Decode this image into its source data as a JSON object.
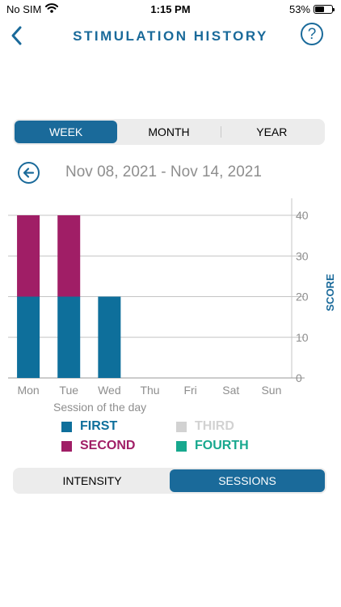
{
  "status": {
    "carrier": "No SIM",
    "time": "1:15 PM",
    "battery": "53%",
    "battery_level": 0.53
  },
  "nav": {
    "title": "STIMULATION HISTORY",
    "back_icon": "chevron-left-icon",
    "help_label": "?"
  },
  "period_tabs": [
    {
      "label": "WEEK",
      "active": true
    },
    {
      "label": "MONTH",
      "active": false
    },
    {
      "label": "YEAR",
      "active": false
    }
  ],
  "date_range": {
    "label": "Nov 08, 2021 - Nov 14, 2021",
    "back_icon": "arrow-left-circle-icon"
  },
  "colors": {
    "accent": "#1a6a9a",
    "first": "#0e6f9b",
    "second": "#a01e66",
    "third": "#d2d2d2",
    "fourth": "#17a88e",
    "axis_text": "#8e8e8e",
    "grid": "#c4c4c4"
  },
  "legend": {
    "items": [
      {
        "label": "FIRST",
        "color": "#0e6f9b"
      },
      {
        "label": "SECOND",
        "color": "#a01e66"
      },
      {
        "label": "THIRD",
        "color": "#d2d2d2"
      },
      {
        "label": "FOURTH",
        "color": "#17a88e"
      }
    ]
  },
  "mode_tabs": [
    {
      "label": "INTENSITY",
      "active": false
    },
    {
      "label": "SESSIONS",
      "active": true
    }
  ],
  "chart_data": {
    "type": "bar",
    "stacked": true,
    "categories": [
      "Mon",
      "Tue",
      "Wed",
      "Thu",
      "Fri",
      "Sat",
      "Sun"
    ],
    "series": [
      {
        "name": "FIRST",
        "values": [
          20,
          20,
          20,
          0,
          0,
          0,
          0
        ]
      },
      {
        "name": "SECOND",
        "values": [
          20,
          20,
          0,
          0,
          0,
          0,
          0
        ]
      },
      {
        "name": "THIRD",
        "values": [
          0,
          0,
          0,
          0,
          0,
          0,
          0
        ]
      },
      {
        "name": "FOURTH",
        "values": [
          0,
          0,
          0,
          0,
          0,
          0,
          0
        ]
      }
    ],
    "xlabel": "Session of the day",
    "ylabel": "SCORE",
    "ylim": [
      0,
      40
    ],
    "yticks": [
      0,
      10,
      20,
      30,
      40
    ],
    "y_axis_side": "right",
    "grid": true
  }
}
